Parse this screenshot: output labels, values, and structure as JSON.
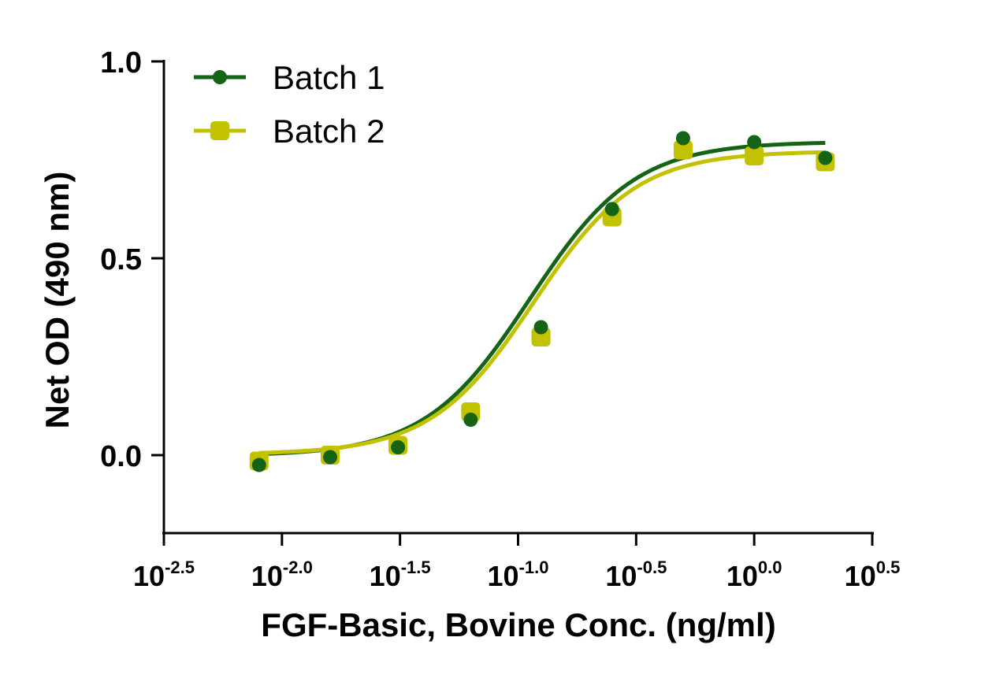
{
  "chart_data": {
    "type": "scatter",
    "title": "",
    "xlabel": "FGF-Basic, Bovine Conc. (ng/ml)",
    "ylabel": "Net OD (490 nm)",
    "x_scale": "log10",
    "xlim_exponent": [
      -2.5,
      0.5
    ],
    "ylim": [
      -0.2,
      1.0
    ],
    "x_ticks": [
      {
        "base": "10",
        "exp": "-2.5",
        "value": -2.5
      },
      {
        "base": "10",
        "exp": "-2.0",
        "value": -2.0
      },
      {
        "base": "10",
        "exp": "-1.5",
        "value": -1.5
      },
      {
        "base": "10",
        "exp": "-1.0",
        "value": -1.0
      },
      {
        "base": "10",
        "exp": "-0.5",
        "value": -0.5
      },
      {
        "base": "10",
        "exp": "0.0",
        "value": 0.0
      },
      {
        "base": "10",
        "exp": "0.5",
        "value": 0.5
      }
    ],
    "y_ticks": [
      {
        "label": "1.0",
        "value": 1.0
      },
      {
        "label": "0.5",
        "value": 0.5
      },
      {
        "label": "0.0",
        "value": 0.0
      }
    ],
    "legend_position": "top-left",
    "series": [
      {
        "name": "Batch 1",
        "color": "#156315",
        "marker": "circle",
        "x": [
          0.008,
          0.016,
          0.031,
          0.063,
          0.125,
          0.25,
          0.5,
          1.0,
          2.0
        ],
        "y": [
          -0.025,
          -0.005,
          0.02,
          0.09,
          0.325,
          0.625,
          0.805,
          0.795,
          0.755
        ],
        "fit": {
          "bottom": -0.002,
          "top": 0.796,
          "log_ec50": -0.95,
          "hill": 1.95
        }
      },
      {
        "name": "Batch 2",
        "color": "#C2C200",
        "marker": "square",
        "x": [
          0.008,
          0.016,
          0.031,
          0.063,
          0.125,
          0.25,
          0.5,
          1.0,
          2.0
        ],
        "y": [
          -0.015,
          0.0,
          0.025,
          0.11,
          0.3,
          0.605,
          0.775,
          0.76,
          0.745
        ],
        "fit": {
          "bottom": 0.002,
          "top": 0.772,
          "log_ec50": -0.935,
          "hill": 2.0
        }
      }
    ]
  }
}
